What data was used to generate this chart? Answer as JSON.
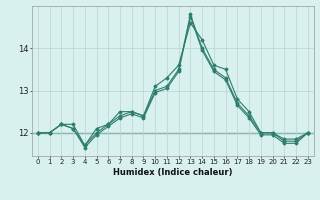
{
  "x": [
    0,
    1,
    2,
    3,
    4,
    5,
    6,
    7,
    8,
    9,
    10,
    11,
    12,
    13,
    14,
    15,
    16,
    17,
    18,
    19,
    20,
    21,
    22,
    23
  ],
  "series1": [
    12.0,
    12.0,
    12.2,
    12.2,
    11.7,
    12.1,
    12.2,
    12.5,
    12.5,
    12.4,
    13.1,
    13.3,
    13.6,
    14.6,
    14.2,
    13.6,
    13.5,
    12.8,
    12.5,
    12.0,
    12.0,
    11.8,
    11.8,
    12.0
  ],
  "series2": [
    12.0,
    12.0,
    12.2,
    12.1,
    11.7,
    12.0,
    12.2,
    12.4,
    12.5,
    12.4,
    13.0,
    13.1,
    13.5,
    14.8,
    14.0,
    13.5,
    13.3,
    12.7,
    12.4,
    12.0,
    12.0,
    11.85,
    11.85,
    12.0
  ],
  "series3": [
    12.0,
    12.0,
    12.2,
    12.1,
    11.65,
    11.95,
    12.15,
    12.35,
    12.45,
    12.35,
    12.95,
    13.05,
    13.45,
    14.75,
    13.95,
    13.45,
    13.25,
    12.65,
    12.35,
    11.95,
    11.95,
    11.75,
    11.75,
    12.0
  ],
  "hline_y": 12.0,
  "line_color": "#2e7d6e",
  "bg_color": "#d8f0ee",
  "grid_color": "#b8d4d0",
  "xlabel": "Humidex (Indice chaleur)",
  "ylim_min": 11.45,
  "ylim_max": 15.0,
  "xlim_min": -0.5,
  "xlim_max": 23.5,
  "yticks": [
    12,
    13,
    14
  ],
  "xtick_fontsize": 5.0,
  "ytick_fontsize": 6.0,
  "xlabel_fontsize": 6.0
}
